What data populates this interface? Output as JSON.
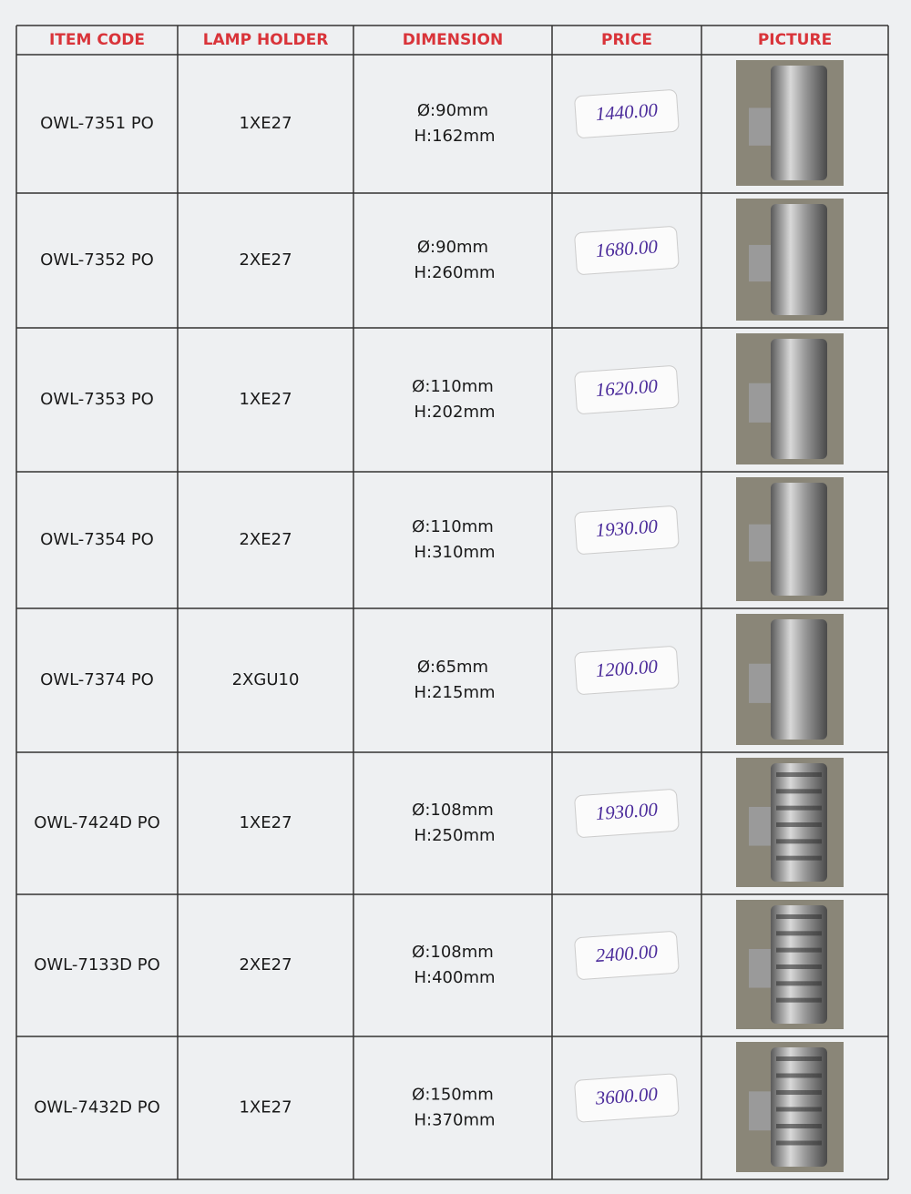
{
  "table": {
    "headers": [
      "ITEM CODE",
      "LAMP HOLDER",
      "DIMENSION",
      "PRICE",
      "PICTURE"
    ],
    "rows": [
      {
        "item_code": "OWL-7351 PO",
        "lamp_holder": "1XE27",
        "dimension": [
          "Ø:90mm",
          "H:162mm"
        ],
        "price": "1440.00"
      },
      {
        "item_code": "OWL-7352 PO",
        "lamp_holder": "2XE27",
        "dimension": [
          "Ø:90mm",
          "H:260mm"
        ],
        "price": "1680.00"
      },
      {
        "item_code": "OWL-7353 PO",
        "lamp_holder": "1XE27",
        "dimension": [
          "Ø:110mm",
          "H:202mm"
        ],
        "price": "1620.00"
      },
      {
        "item_code": "OWL-7354 PO",
        "lamp_holder": "2XE27",
        "dimension": [
          "Ø:110mm",
          "H:310mm"
        ],
        "price": "1930.00"
      },
      {
        "item_code": "OWL-7374 PO",
        "lamp_holder": "2XGU10",
        "dimension": [
          "Ø:65mm",
          "H:215mm"
        ],
        "price": "1200.00"
      },
      {
        "item_code": "OWL-7424D PO",
        "lamp_holder": "1XE27",
        "dimension": [
          "Ø:108mm",
          "H:250mm"
        ],
        "price": "1930.00"
      },
      {
        "item_code": "OWL-7133D PO",
        "lamp_holder": "2XE27",
        "dimension": [
          "Ø:108mm",
          "H:400mm"
        ],
        "price": "2400.00"
      },
      {
        "item_code": "OWL-7432D PO",
        "lamp_holder": "1XE27",
        "dimension": [
          "Ø:150mm",
          "H:370mm"
        ],
        "price": "3600.00"
      }
    ]
  }
}
